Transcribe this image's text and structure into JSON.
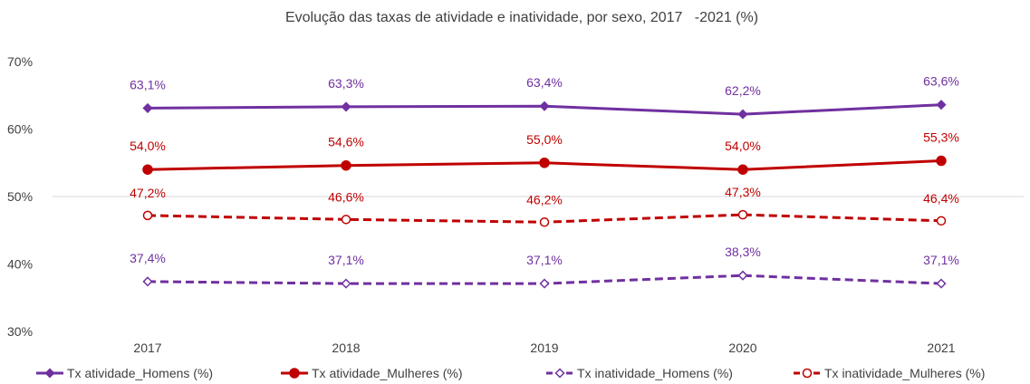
{
  "chart_data": {
    "type": "line",
    "title": "Evolução das taxas de atividade e inatividade, por sexo, 2017   -2021 (%)",
    "categories": [
      "2017",
      "2018",
      "2019",
      "2020",
      "2021"
    ],
    "ylim": [
      30,
      70
    ],
    "yticks": [
      30,
      40,
      50,
      60,
      70
    ],
    "ytick_labels": [
      "30%",
      "40%",
      "50%",
      "60%",
      "70%"
    ],
    "grid": "horizontal at 50% only",
    "legend_position": "bottom",
    "series": [
      {
        "name": "Tx atividade_Homens (%)",
        "values": [
          63.1,
          63.3,
          63.4,
          62.2,
          63.6
        ],
        "labels": [
          "63,1%",
          "63,3%",
          "63,4%",
          "62,2%",
          "63,6%"
        ],
        "color": "#7030a0",
        "line": "solid",
        "marker": "diamond-filled"
      },
      {
        "name": "Tx atividade_Mulheres (%)",
        "values": [
          54.0,
          54.6,
          55.0,
          54.0,
          55.3
        ],
        "labels": [
          "54,0%",
          "54,6%",
          "55,0%",
          "54,0%",
          "55,3%"
        ],
        "color": "#c00000",
        "line": "solid",
        "marker": "circle-filled"
      },
      {
        "name": "Tx inatividade_Homens (%)",
        "values": [
          37.4,
          37.1,
          37.1,
          38.3,
          37.1
        ],
        "labels": [
          "37,4%",
          "37,1%",
          "37,1%",
          "38,3%",
          "37,1%"
        ],
        "color": "#7030a0",
        "line": "dashed",
        "marker": "diamond-open"
      },
      {
        "name": "Tx inatividade_Mulheres (%)",
        "values": [
          47.2,
          46.6,
          46.2,
          47.3,
          46.4
        ],
        "labels": [
          "47,2%",
          "46,6%",
          "46,2%",
          "47,3%",
          "46,4%"
        ],
        "color": "#c00000",
        "line": "dashed",
        "marker": "circle-open"
      }
    ]
  }
}
